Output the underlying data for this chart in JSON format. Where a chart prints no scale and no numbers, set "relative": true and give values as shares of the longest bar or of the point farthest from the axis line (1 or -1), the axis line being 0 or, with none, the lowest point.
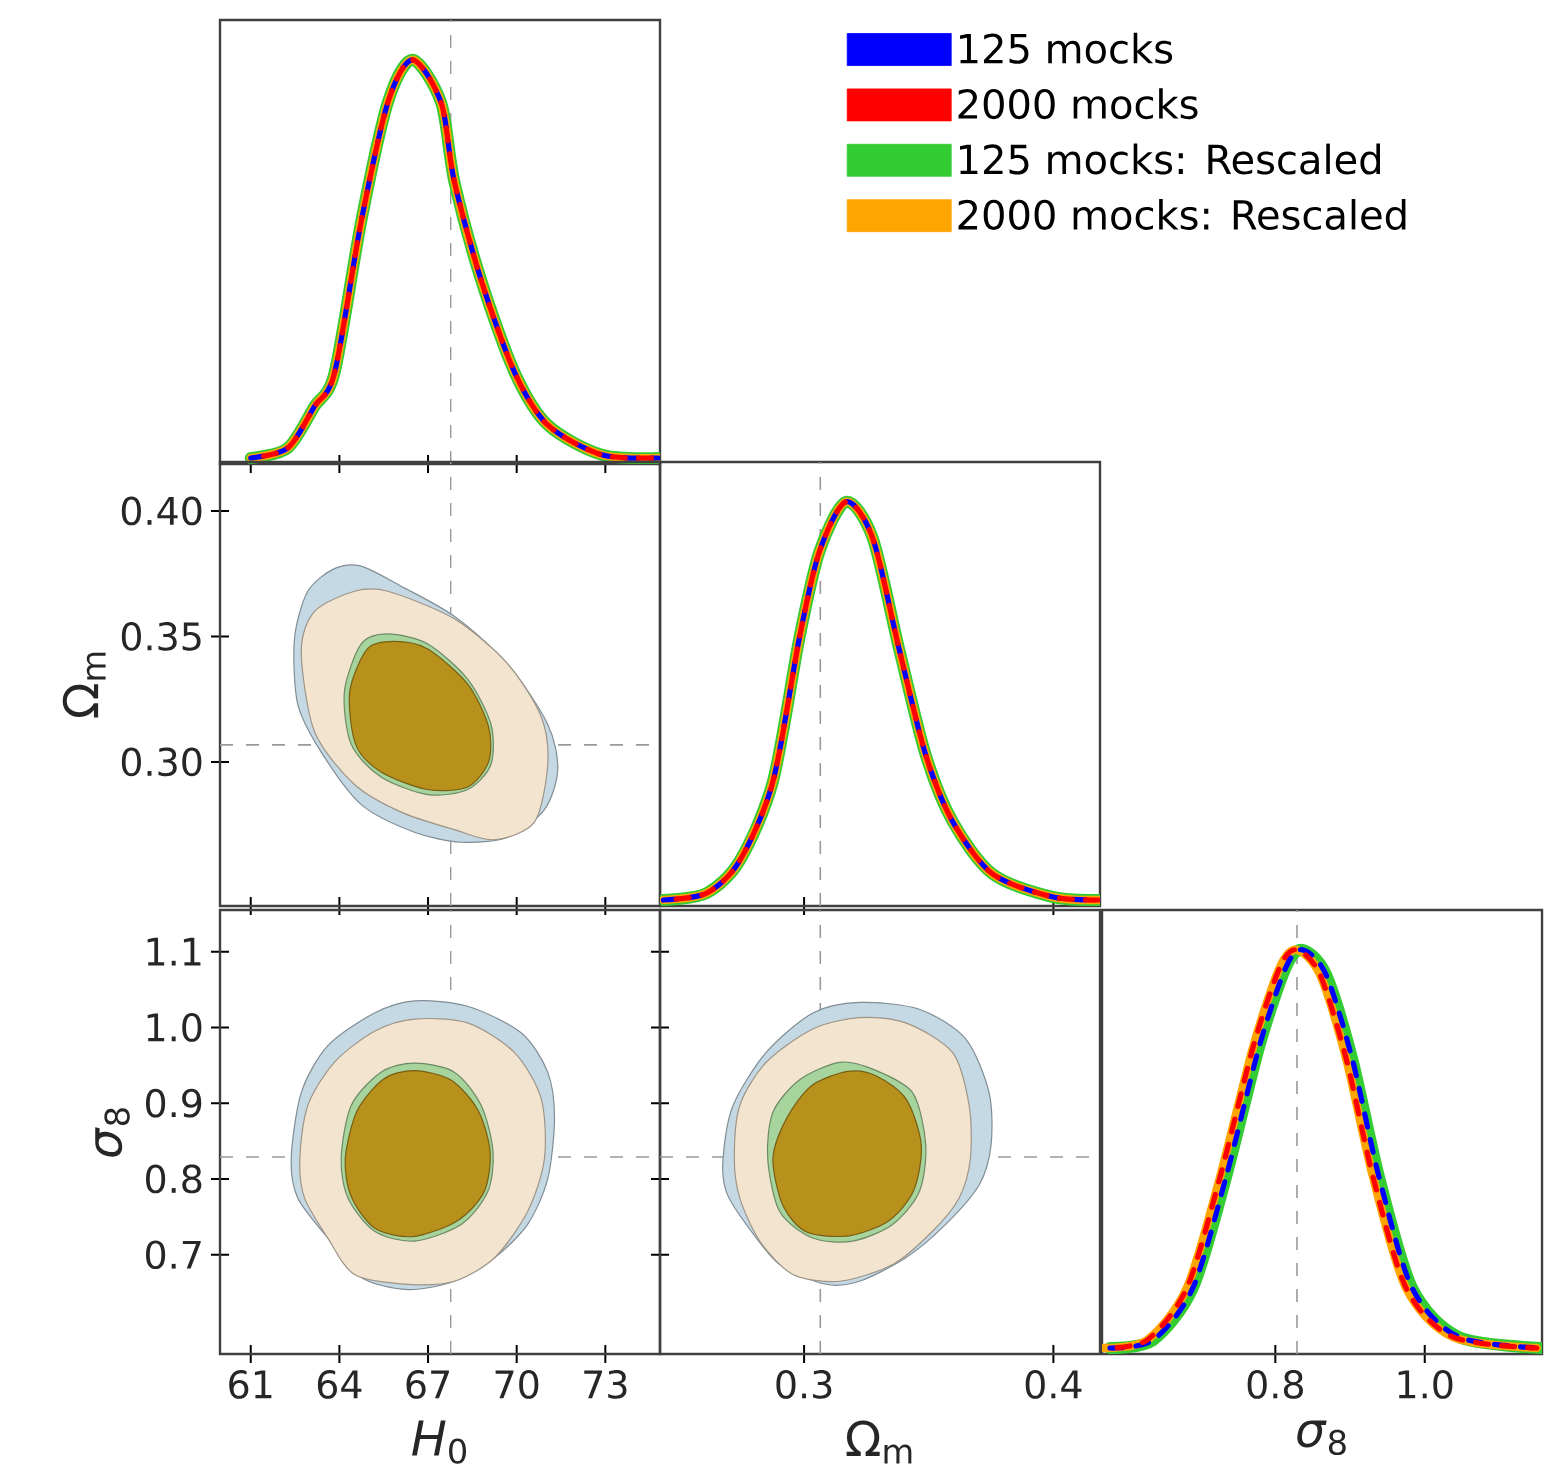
{
  "chart_data": [
    {
      "type": "line",
      "relative": true,
      "legend": "right",
      "tick_labels": false,
      "xlim": [
        59.96,
        74.85
      ],
      "xticks": [
        61,
        64,
        67,
        70,
        73
      ],
      "x": [
        61.0,
        62.25,
        63.16,
        63.84,
        64.74,
        65.64,
        66.47,
        67.44,
        67.89,
        68.8,
        69.93,
        71.05,
        72.88,
        74.8
      ],
      "ref_lines": [
        {
          "axis": "x",
          "value": 67.77,
          "color": "#999999",
          "line_style": "dashed"
        }
      ],
      "series": [
        {
          "name": "125 mocks",
          "color": "#0000ff",
          "line_style": "dashed",
          "values": [
            0,
            0.025,
            0.13,
            0.215,
            0.595,
            0.893,
            1.0,
            0.893,
            0.694,
            0.446,
            0.215,
            0.083,
            0.008,
            0
          ]
        },
        {
          "name": "2000 mocks",
          "color": "#ff0000",
          "line_style": "dashed",
          "values": [
            0,
            0.025,
            0.13,
            0.215,
            0.595,
            0.893,
            1.0,
            0.893,
            0.694,
            0.446,
            0.215,
            0.083,
            0.008,
            0
          ]
        },
        {
          "name": "125 mocks: Rescaled",
          "color": "#33cc33",
          "line_style": "solid",
          "values": [
            0,
            0.025,
            0.13,
            0.215,
            0.595,
            0.893,
            1.0,
            0.893,
            0.694,
            0.446,
            0.215,
            0.083,
            0.008,
            0
          ]
        },
        {
          "name": "2000 mocks: Rescaled",
          "color": "#ffa500",
          "line_style": "solid",
          "values": [
            0,
            0.025,
            0.13,
            0.215,
            0.595,
            0.893,
            1.0,
            0.893,
            0.694,
            0.446,
            0.215,
            0.083,
            0.008,
            0
          ]
        }
      ]
    },
    {
      "type": "area",
      "tick_labels": "y",
      "ylabel": "Ω$_{m}$",
      "xlim": [
        59.96,
        74.85
      ],
      "xticks": [
        61,
        64,
        67,
        70,
        73
      ],
      "ylim": [
        0.2426,
        0.4195
      ],
      "yticks": [
        {
          "value": 0.3,
          "label": "0.30"
        },
        0.35,
        {
          "value": 0.4,
          "label": "0.40"
        }
      ],
      "ref_lines": [
        {
          "axis": "x",
          "value": 67.77,
          "color": "#999999",
          "line_style": "dashed"
        },
        {
          "axis": "y",
          "value": 0.3068,
          "color": "#999999",
          "line_style": "dashed"
        }
      ],
      "series": [
        {
          "color": "#c5d9e4",
          "x": [
            62.48,
            62.93,
            63.83,
            64.74,
            66.09,
            67.89,
            69.7,
            71.05,
            71.39,
            70.94,
            69.7,
            68.12,
            66.54,
            64.74,
            63.38,
            62.59
          ],
          "values": [
            0.349,
            0.368,
            0.377,
            0.378,
            0.37,
            0.358,
            0.339,
            0.315,
            0.297,
            0.281,
            0.27,
            0.268,
            0.272,
            0.283,
            0.304,
            0.323
          ]
        },
        {
          "color": "#f3e4cf",
          "x": [
            62.71,
            63.16,
            64.51,
            65.64,
            67.89,
            69.7,
            70.83,
            71.05,
            70.6,
            69.25,
            67.89,
            66.09,
            64.51,
            63.16
          ],
          "values": [
            0.344,
            0.36,
            0.368,
            0.368,
            0.357,
            0.339,
            0.318,
            0.299,
            0.276,
            0.269,
            0.273,
            0.28,
            0.291,
            0.312
          ]
        },
        {
          "color": "#a6d49c",
          "x": [
            64.17,
            64.74,
            65.64,
            66.99,
            68.34,
            69.13,
            69.13,
            68.34,
            66.99,
            65.41,
            64.4
          ],
          "values": [
            0.328,
            0.347,
            0.351,
            0.347,
            0.333,
            0.315,
            0.299,
            0.289,
            0.287,
            0.294,
            0.307
          ]
        },
        {
          "color": "#b8901c",
          "x": [
            64.35,
            64.95,
            65.85,
            66.99,
            68.34,
            69.05,
            69.05,
            68.34,
            66.99,
            65.41,
            64.55
          ],
          "values": [
            0.328,
            0.345,
            0.348,
            0.345,
            0.331,
            0.314,
            0.3,
            0.29,
            0.289,
            0.296,
            0.307
          ]
        }
      ]
    },
    {
      "type": "line",
      "relative": true,
      "tick_labels": false,
      "xlim": [
        0.2422,
        0.4187
      ],
      "xticks": [
        0.3,
        0.4
      ],
      "x": [
        0.2435,
        0.2608,
        0.2742,
        0.2875,
        0.2982,
        0.3062,
        0.3168,
        0.3275,
        0.3382,
        0.3488,
        0.3595,
        0.3755,
        0.3995,
        0.418
      ],
      "ref_lines": [
        {
          "axis": "x",
          "value": 0.3065,
          "color": "#999999",
          "line_style": "dashed"
        }
      ],
      "series": [
        {
          "color": "#0000ff",
          "line_style": "dashed",
          "values": [
            0,
            0.017,
            0.099,
            0.298,
            0.661,
            0.876,
            1.0,
            0.909,
            0.628,
            0.364,
            0.198,
            0.066,
            0.008,
            0
          ]
        },
        {
          "color": "#ff0000",
          "line_style": "dashed",
          "values": [
            0,
            0.017,
            0.099,
            0.298,
            0.661,
            0.876,
            1.0,
            0.909,
            0.628,
            0.364,
            0.198,
            0.066,
            0.008,
            0
          ]
        },
        {
          "color": "#33cc33",
          "line_style": "solid",
          "values": [
            0,
            0.017,
            0.099,
            0.298,
            0.661,
            0.876,
            1.0,
            0.909,
            0.628,
            0.364,
            0.198,
            0.066,
            0.008,
            0
          ]
        },
        {
          "color": "#ffa500",
          "line_style": "solid",
          "values": [
            0,
            0.017,
            0.099,
            0.298,
            0.661,
            0.876,
            1.0,
            0.909,
            0.628,
            0.364,
            0.198,
            0.066,
            0.008,
            0
          ]
        }
      ]
    },
    {
      "type": "area",
      "xlabel": "*H*$_{0}$",
      "ylabel": "*σ*$_{8}$",
      "xlim": [
        59.96,
        74.85
      ],
      "xticks": [
        61,
        64,
        67,
        70,
        73
      ],
      "ylim": [
        0.569,
        1.155
      ],
      "yticks": [
        0.7,
        0.8,
        0.9,
        {
          "value": 1,
          "label": "1.0"
        },
        1.1
      ],
      "ref_lines": [
        {
          "axis": "x",
          "value": 67.77,
          "color": "#999999",
          "line_style": "dashed"
        },
        {
          "axis": "y",
          "value": 0.829,
          "color": "#999999",
          "line_style": "dashed"
        }
      ],
      "series": [
        {
          "color": "#c5d9e4",
          "x": [
            62.37,
            62.71,
            63.61,
            65.19,
            66.54,
            68.34,
            70.15,
            71.05,
            71.28,
            71.05,
            70.37,
            69.25,
            67.89,
            66.31,
            64.74,
            63.61,
            62.59
          ],
          "values": [
            0.827,
            0.914,
            0.976,
            1.019,
            1.035,
            1.028,
            0.993,
            0.941,
            0.88,
            0.8,
            0.74,
            0.696,
            0.665,
            0.654,
            0.67,
            0.722,
            0.775
          ]
        },
        {
          "color": "#f3e4cf",
          "x": [
            62.66,
            62.93,
            63.83,
            65.19,
            66.54,
            68.34,
            69.92,
            70.83,
            70.94,
            70.37,
            69.25,
            67.89,
            66.31,
            64.51,
            63.61,
            62.82
          ],
          "values": [
            0.827,
            0.897,
            0.954,
            0.995,
            1.011,
            1.006,
            0.967,
            0.906,
            0.827,
            0.757,
            0.696,
            0.665,
            0.661,
            0.674,
            0.722,
            0.775
          ]
        },
        {
          "color": "#a6d49c",
          "x": [
            64.06,
            64.4,
            65.41,
            66.54,
            67.89,
            68.8,
            69.2,
            69.02,
            68.12,
            66.54,
            65.19,
            64.29
          ],
          "values": [
            0.827,
            0.897,
            0.941,
            0.953,
            0.941,
            0.897,
            0.836,
            0.783,
            0.74,
            0.718,
            0.731,
            0.775
          ]
        },
        {
          "color": "#b8901c",
          "x": [
            64.2,
            64.6,
            65.5,
            66.54,
            67.8,
            68.7,
            69.1,
            68.9,
            68.0,
            66.5,
            65.2,
            64.4
          ],
          "values": [
            0.827,
            0.89,
            0.932,
            0.943,
            0.93,
            0.89,
            0.836,
            0.783,
            0.745,
            0.724,
            0.735,
            0.777
          ]
        }
      ]
    },
    {
      "type": "area",
      "tick_labels": "x",
      "xlabel": "Ω$_{m}$",
      "xlim": [
        0.2422,
        0.4187
      ],
      "xticks": [
        0.3,
        0.4
      ],
      "ylim": [
        0.569,
        1.155
      ],
      "yticks": [
        0.7,
        0.8,
        0.9,
        1,
        1.1
      ],
      "ref_lines": [
        {
          "axis": "x",
          "value": 0.3065,
          "color": "#999999",
          "line_style": "dashed"
        },
        {
          "axis": "y",
          "value": 0.829,
          "color": "#999999",
          "line_style": "dashed"
        }
      ],
      "series": [
        {
          "color": "#c5d9e4",
          "x": [
            0.2675,
            0.2715,
            0.2848,
            0.3035,
            0.3222,
            0.3462,
            0.3648,
            0.3742,
            0.375,
            0.3702,
            0.3568,
            0.3408,
            0.3222,
            0.3088,
            0.2902,
            0.2768,
            0.2688
          ],
          "values": [
            0.827,
            0.897,
            0.967,
            1.019,
            1.033,
            1.024,
            0.985,
            0.914,
            0.845,
            0.792,
            0.74,
            0.696,
            0.665,
            0.661,
            0.687,
            0.74,
            0.783
          ]
        },
        {
          "color": "#f3e4cf",
          "x": [
            0.272,
            0.2742,
            0.2848,
            0.3035,
            0.3222,
            0.3408,
            0.3595,
            0.3662,
            0.3667,
            0.3622,
            0.3515,
            0.3355,
            0.3142,
            0.2955,
            0.2822,
            0.2742
          ],
          "values": [
            0.827,
            0.897,
            0.954,
            0.998,
            1.013,
            1.006,
            0.967,
            0.897,
            0.827,
            0.775,
            0.731,
            0.687,
            0.665,
            0.674,
            0.718,
            0.775
          ]
        },
        {
          "color": "#a6d49c",
          "x": [
            0.2854,
            0.2875,
            0.2982,
            0.3142,
            0.3275,
            0.3435,
            0.3488,
            0.3462,
            0.3355,
            0.3195,
            0.3035,
            0.2902
          ],
          "values": [
            0.827,
            0.888,
            0.931,
            0.954,
            0.945,
            0.914,
            0.845,
            0.783,
            0.74,
            0.718,
            0.722,
            0.757
          ]
        },
        {
          "color": "#b8901c",
          "x": [
            0.2875,
            0.293,
            0.303,
            0.3175,
            0.329,
            0.341,
            0.347,
            0.344,
            0.334,
            0.318,
            0.301,
            0.2915
          ],
          "values": [
            0.827,
            0.88,
            0.923,
            0.942,
            0.936,
            0.905,
            0.845,
            0.785,
            0.745,
            0.725,
            0.73,
            0.765
          ]
        }
      ]
    },
    {
      "type": "line",
      "relative": true,
      "tick_labels": "x",
      "xlabel": "*σ*$_{8}$",
      "xlim": [
        0.568,
        1.157
      ],
      "xticks": [
        0.8,
        {
          "value": 1,
          "label": "1.0"
        }
      ],
      "ref_lines": [
        {
          "axis": "x",
          "value": 0.829,
          "color": "#999999",
          "line_style": "dashed"
        }
      ],
      "series": [
        {
          "color": "#0000ff",
          "line_style": "dashed",
          "x": [
            0.5787,
            0.6363,
            0.6896,
            0.7341,
            0.7787,
            0.8141,
            0.8363,
            0.8675,
            0.9029,
            0.9387,
            0.983,
            1.0453,
            1.155
          ],
          "values": [
            0,
            0.02,
            0.151,
            0.43,
            0.759,
            0.956,
            1.0,
            0.939,
            0.726,
            0.43,
            0.151,
            0.028,
            0
          ]
        },
        {
          "color": "#ff0000",
          "line_style": "dashed",
          "x": [
            0.5707,
            0.6283,
            0.6816,
            0.7261,
            0.7707,
            0.8061,
            0.8283,
            0.8595,
            0.8949,
            0.9307,
            0.975,
            1.0373,
            1.15
          ],
          "values": [
            0,
            0.02,
            0.151,
            0.43,
            0.759,
            0.956,
            1.0,
            0.939,
            0.726,
            0.43,
            0.151,
            0.028,
            0
          ]
        },
        {
          "color": "#33cc33",
          "line_style": "solid",
          "x": [
            0.5787,
            0.6363,
            0.6896,
            0.7341,
            0.7787,
            0.8141,
            0.8363,
            0.8675,
            0.9029,
            0.9387,
            0.983,
            1.0453,
            1.155
          ],
          "values": [
            0,
            0.02,
            0.151,
            0.43,
            0.759,
            0.956,
            1.0,
            0.939,
            0.726,
            0.43,
            0.151,
            0.028,
            0
          ]
        },
        {
          "color": "#ffa500",
          "line_style": "solid",
          "x": [
            0.5707,
            0.6283,
            0.6816,
            0.7261,
            0.7707,
            0.8061,
            0.8283,
            0.8595,
            0.8949,
            0.9307,
            0.975,
            1.0373,
            1.15
          ],
          "values": [
            0,
            0.02,
            0.151,
            0.43,
            0.759,
            0.956,
            1.0,
            0.939,
            0.726,
            0.43,
            0.151,
            0.028,
            0
          ]
        }
      ]
    }
  ]
}
